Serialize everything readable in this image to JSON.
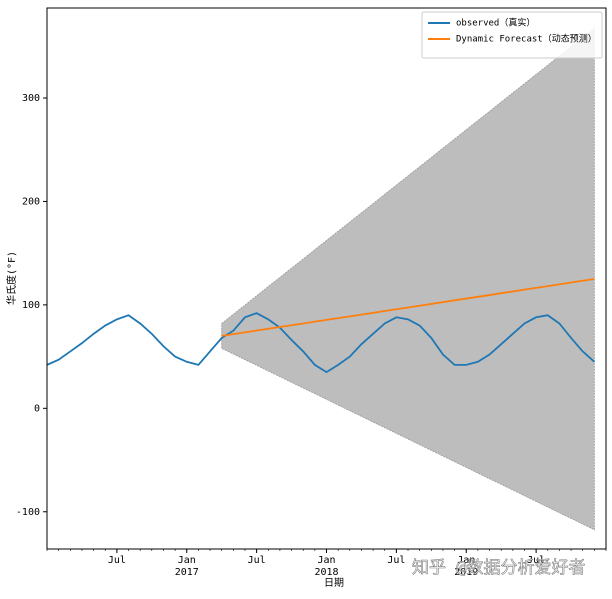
{
  "chart_data": {
    "type": "line",
    "xlabel": "日期",
    "ylabel": "华氏度(°F)",
    "annotation": "知乎 @数据分析爱好者",
    "x": [
      "2016-01",
      "2016-02",
      "2016-03",
      "2016-04",
      "2016-05",
      "2016-06",
      "2016-07",
      "2016-08",
      "2016-09",
      "2016-10",
      "2016-11",
      "2016-12",
      "2017-01",
      "2017-02",
      "2017-03",
      "2017-04",
      "2017-05",
      "2017-06",
      "2017-07",
      "2017-08",
      "2017-09",
      "2017-10",
      "2017-11",
      "2017-12",
      "2018-01",
      "2018-02",
      "2018-03",
      "2018-04",
      "2018-05",
      "2018-06",
      "2018-07",
      "2018-08",
      "2018-09",
      "2018-10",
      "2018-11",
      "2018-12",
      "2019-01",
      "2019-02",
      "2019-03",
      "2019-04",
      "2019-05",
      "2019-06",
      "2019-07",
      "2019-08",
      "2019-09",
      "2019-10",
      "2019-11",
      "2019-12"
    ],
    "series": [
      {
        "name": "observed（真实）",
        "color": "#1f77b4",
        "values": [
          42,
          47,
          55,
          63,
          72,
          80,
          86,
          90,
          82,
          72,
          60,
          50,
          45,
          42,
          55,
          68,
          75,
          88,
          92,
          86,
          78,
          66,
          55,
          42,
          35,
          42,
          50,
          62,
          72,
          82,
          88,
          86,
          80,
          68,
          52,
          42,
          42,
          45,
          52,
          62,
          72,
          82,
          88,
          90,
          82,
          68,
          55,
          45
        ]
      },
      {
        "name": "Dynamic Forecast（动态预测）",
        "color": "#ff7f0e",
        "band_color": "#bdbdbd",
        "values": [
          null,
          null,
          null,
          null,
          null,
          null,
          null,
          null,
          null,
          null,
          null,
          null,
          null,
          null,
          null,
          70,
          71.7,
          73.4,
          75.2,
          76.9,
          78.6,
          80.3,
          82.0,
          83.8,
          85.5,
          87.2,
          88.9,
          90.6,
          92.3,
          94.1,
          95.8,
          97.5,
          99.2,
          100.9,
          102.7,
          104.4,
          106.1,
          107.8,
          109.5,
          111.3,
          113.0,
          114.7,
          116.4,
          118.1,
          119.8,
          121.6,
          123.3,
          125
        ],
        "ci_upper": [
          null,
          null,
          null,
          null,
          null,
          null,
          null,
          null,
          null,
          null,
          null,
          null,
          null,
          null,
          null,
          82,
          90.9,
          99.8,
          108.8,
          117.7,
          126.6,
          135.5,
          144.4,
          153.4,
          162.3,
          171.2,
          180.1,
          189.0,
          197.9,
          206.9,
          215.8,
          224.7,
          233.6,
          242.5,
          251.5,
          260.4,
          269.3,
          278.2,
          287.1,
          296.1,
          305.0,
          313.9,
          322.8,
          331.7,
          340.6,
          349.6,
          358.5,
          367.4
        ],
        "ci_lower": [
          null,
          null,
          null,
          null,
          null,
          null,
          null,
          null,
          null,
          null,
          null,
          null,
          null,
          null,
          null,
          58,
          52.5,
          47.0,
          41.6,
          36.1,
          30.6,
          25.1,
          19.6,
          14.2,
          8.7,
          3.2,
          -2.3,
          -7.8,
          -13.3,
          -18.7,
          -24.2,
          -29.7,
          -35.2,
          -40.7,
          -46.1,
          -51.6,
          -57.1,
          -62.6,
          -68.1,
          -73.5,
          -79.0,
          -84.5,
          -90.0,
          -95.5,
          -101.0,
          -106.4,
          -111.9,
          -117.4
        ]
      }
    ],
    "xlim": [
      "2016-01",
      "2020-01"
    ],
    "xticks": [
      {
        "value": "2016-07",
        "label": "Jul"
      },
      {
        "value": "2017-01",
        "label": "Jan",
        "year": "2017"
      },
      {
        "value": "2017-07",
        "label": "Jul"
      },
      {
        "value": "2018-01",
        "label": "Jan",
        "year": "2018"
      },
      {
        "value": "2018-07",
        "label": "Jul"
      },
      {
        "value": "2019-01",
        "label": "Jan",
        "year": "2019"
      },
      {
        "value": "2019-07",
        "label": "Jul"
      }
    ],
    "ylim": [
      -136,
      387
    ],
    "yticks": [
      -100,
      0,
      100,
      200,
      300
    ],
    "legend": "upper right"
  }
}
